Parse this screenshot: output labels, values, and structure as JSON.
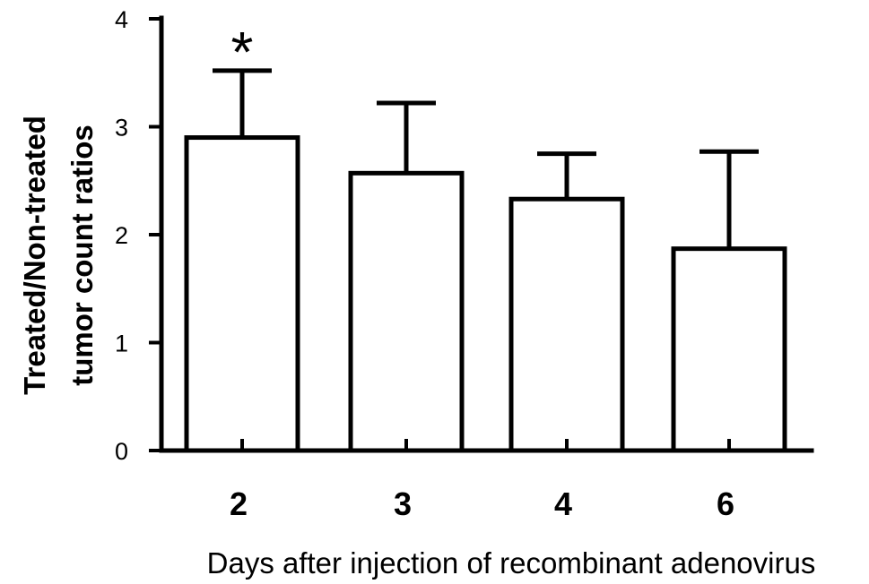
{
  "chart_data": {
    "type": "bar",
    "categories": [
      "2",
      "3",
      "4",
      "6"
    ],
    "values": [
      2.9,
      2.57,
      2.33,
      1.87
    ],
    "errors": [
      0.62,
      0.65,
      0.42,
      0.9
    ],
    "annotations": [
      "*",
      "",
      "",
      ""
    ],
    "ylim": [
      0,
      4
    ],
    "yticks": [
      "0",
      "1",
      "2",
      "3",
      "4"
    ],
    "ylabel_line1": "Treated/Non-treated",
    "ylabel_line2": "tumor count ratios",
    "xlabel": "Days after injection of recombinant adenovirus",
    "grid": false,
    "bar_fill": "#ffffff",
    "bar_stroke": "#000000"
  }
}
